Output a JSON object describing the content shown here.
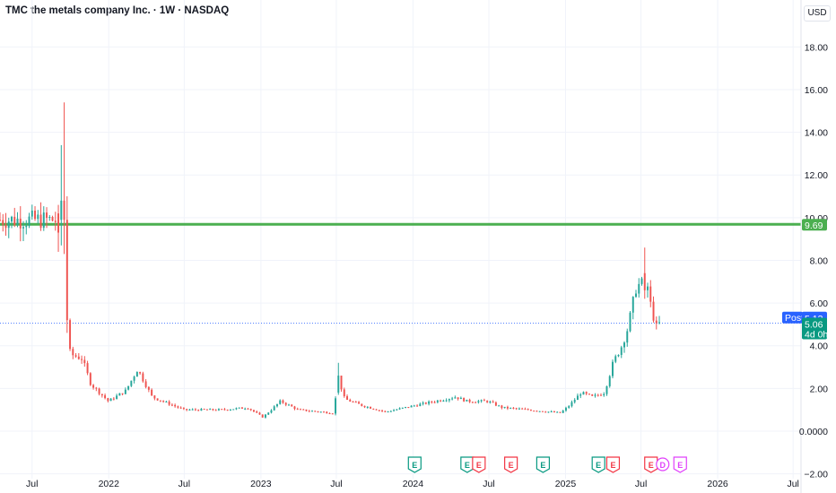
{
  "header": {
    "title": "TMC the metals company Inc. · 1W · NASDAQ",
    "currency": "USD"
  },
  "chart_data": {
    "type": "candlestick",
    "title": "TMC the metals company Inc. · 1W · NASDAQ",
    "ylim": [
      -2.9,
      20.2
    ],
    "y_ticks": [
      "18.00",
      "16.00",
      "14.00",
      "12.00",
      "10.00",
      "8.00",
      "6.00",
      "4.00",
      "2.00",
      "0.0000",
      "−2.00"
    ],
    "y_tick_values": [
      18,
      16,
      14,
      12,
      10,
      8,
      6,
      4,
      2,
      0,
      -2
    ],
    "x_ticks": [
      "Jul",
      "2022",
      "Jul",
      "2023",
      "Jul",
      "2024",
      "Jul",
      "2025",
      "Jul",
      "2026",
      "Jul"
    ],
    "x_tick_dates": [
      "2021-07-01",
      "2022-01-01",
      "2022-07-01",
      "2023-01-01",
      "2023-07-01",
      "2024-01-01",
      "2024-07-01",
      "2025-01-01",
      "2025-07-01",
      "2026-01-01",
      "2026-07-01"
    ],
    "x_range": [
      "2021-04-15",
      "2026-07-20"
    ],
    "grid": true,
    "colors": {
      "up": "#26a69a",
      "down": "#ef5350",
      "resistance": "#4caf50",
      "post": "#2962ff",
      "last": "#089981",
      "earnings_up": "#089981",
      "earnings_down": "#f23645",
      "dividend": "#e040fb"
    },
    "horizontal_line": {
      "value": 9.69,
      "label": "9.69",
      "color": "#4caf50"
    },
    "post_market": {
      "label": "Post",
      "value": "5.13"
    },
    "last_price": {
      "value": "5.06",
      "countdown": "4d 0h"
    },
    "anchors": [
      [
        "2021-04-15",
        9.9
      ],
      [
        "2021-08-20",
        9.9
      ],
      [
        "2021-09-10",
        9.8
      ],
      [
        "2021-09-17",
        5.0
      ],
      [
        "2021-10-01",
        3.6
      ],
      [
        "2021-10-29",
        3.4
      ],
      [
        "2021-11-19",
        2.2
      ],
      [
        "2021-12-31",
        1.4
      ],
      [
        "2022-02-11",
        1.9
      ],
      [
        "2022-03-11",
        2.9
      ],
      [
        "2022-04-15",
        1.6
      ],
      [
        "2022-06-30",
        1.0
      ],
      [
        "2022-09-30",
        1.0
      ],
      [
        "2022-11-30",
        1.1
      ],
      [
        "2023-01-06",
        0.65
      ],
      [
        "2023-02-17",
        1.4
      ],
      [
        "2023-03-31",
        1.0
      ],
      [
        "2023-06-23",
        0.85
      ],
      [
        "2023-07-07",
        2.4
      ],
      [
        "2023-07-21",
        1.5
      ],
      [
        "2023-09-01",
        1.2
      ],
      [
        "2023-10-27",
        0.9
      ],
      [
        "2024-01-05",
        1.2
      ],
      [
        "2024-04-12",
        1.6
      ],
      [
        "2024-05-10",
        1.4
      ],
      [
        "2024-06-28",
        1.4
      ],
      [
        "2024-08-02",
        1.1
      ],
      [
        "2024-10-04",
        1.0
      ],
      [
        "2024-12-20",
        0.85
      ],
      [
        "2025-01-10",
        1.2
      ],
      [
        "2025-02-07",
        1.8
      ],
      [
        "2025-03-07",
        1.6
      ],
      [
        "2025-04-04",
        1.8
      ],
      [
        "2025-04-25",
        3.2
      ],
      [
        "2025-05-16",
        4.0
      ],
      [
        "2025-05-30",
        4.8
      ],
      [
        "2025-06-20",
        6.8
      ],
      [
        "2025-07-04",
        6.9
      ],
      [
        "2025-07-11",
        7.5
      ],
      [
        "2025-07-25",
        5.8
      ],
      [
        "2025-08-08",
        4.8
      ],
      [
        "2025-08-15",
        5.06
      ]
    ],
    "spikes": [
      [
        "2021-09-03",
        10.2,
        9.3,
        10.6,
        8.4
      ],
      [
        "2021-09-10",
        9.9,
        10.8,
        13.4,
        8.7
      ],
      [
        "2021-09-17",
        10.8,
        9.9,
        15.4,
        8.3
      ],
      [
        "2021-09-24",
        9.9,
        5.2,
        11.0,
        4.6
      ],
      [
        "2023-07-07",
        1.8,
        2.6,
        3.2,
        1.7
      ],
      [
        "2025-07-11",
        7.4,
        6.6,
        8.6,
        6.2
      ]
    ],
    "events": [
      {
        "date": "2024-01-05",
        "label": "E",
        "kind": "earnings-up"
      },
      {
        "date": "2024-05-10",
        "label": "E",
        "kind": "earnings-up"
      },
      {
        "date": "2024-06-07",
        "label": "E",
        "kind": "earnings-down"
      },
      {
        "date": "2024-08-23",
        "label": "E",
        "kind": "earnings-down"
      },
      {
        "date": "2024-11-08",
        "label": "E",
        "kind": "earnings-up"
      },
      {
        "date": "2025-03-21",
        "label": "E",
        "kind": "earnings-up"
      },
      {
        "date": "2025-04-25",
        "label": "E",
        "kind": "earnings-down"
      },
      {
        "date": "2025-07-25",
        "label": "E",
        "kind": "earnings-down"
      },
      {
        "date": "2025-08-22",
        "label": "D",
        "kind": "dividend"
      },
      {
        "date": "2025-10-03",
        "label": "E",
        "kind": "dividend"
      }
    ]
  }
}
